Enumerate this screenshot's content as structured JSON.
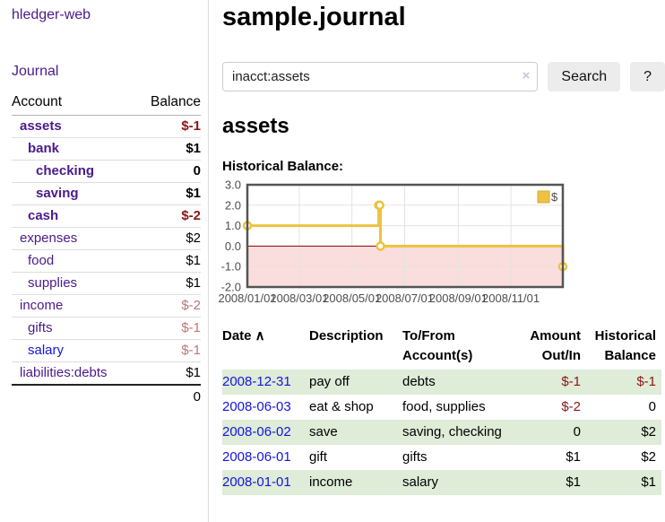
{
  "app": {
    "brand": "hledger-web",
    "nav_journal": "Journal"
  },
  "colors": {
    "link_purple": "#4a1a8c",
    "link_blue": "#1515dd",
    "negative_strong": "#8b1515",
    "negative_faint": "#bb7777",
    "row_stripe_green": "#deecd8"
  },
  "sidebar": {
    "header_account": "Account",
    "header_balance": "Balance",
    "accounts": [
      {
        "name": "assets",
        "indent": 1,
        "balance": "$-1",
        "bold": true
      },
      {
        "name": "bank",
        "indent": 2,
        "balance": "$1",
        "bold": true
      },
      {
        "name": "checking",
        "indent": 3,
        "balance": "0",
        "bold": true
      },
      {
        "name": "saving",
        "indent": 3,
        "balance": "$1",
        "bold": true
      },
      {
        "name": "cash",
        "indent": 2,
        "balance": "$-2",
        "bold": true
      },
      {
        "name": "expenses",
        "indent": 1,
        "balance": "$2",
        "bold": false
      },
      {
        "name": "food",
        "indent": 2,
        "balance": "$1",
        "bold": false
      },
      {
        "name": "supplies",
        "indent": 2,
        "balance": "$1",
        "bold": false
      },
      {
        "name": "income",
        "indent": 1,
        "balance": "$-2",
        "bold": false
      },
      {
        "name": "gifts",
        "indent": 2,
        "balance": "$-1",
        "bold": false
      },
      {
        "name": "salary",
        "indent": 2,
        "balance": "$-1",
        "bold": false,
        "link_color": "blue"
      },
      {
        "name": "liabilities:debts",
        "indent": 1,
        "balance": "$1",
        "bold": false
      }
    ],
    "total": "0"
  },
  "main": {
    "title": "sample.journal",
    "search": {
      "value": "inacct:assets",
      "clear_icon": "×",
      "button_label": "Search",
      "help_label": "?"
    },
    "account_heading": "assets",
    "chart_label": "Historical Balance:"
  },
  "chart_data": {
    "type": "line",
    "step": true,
    "title": "Historical Balance",
    "xlim": [
      "2008-01-01",
      "2008-12-31"
    ],
    "ylim": [
      -2,
      3
    ],
    "x_ticks": [
      "2008/01/01",
      "2008/03/01",
      "2008/05/01",
      "2008/07/01",
      "2008/09/01",
      "2008/11/01"
    ],
    "y_ticks": [
      "3.0",
      "2.0",
      "1.0",
      "0.0",
      "-1.0",
      "-2.0"
    ],
    "grid": true,
    "negative_fill": "#fadddd",
    "zero_line_color": "#8b0000",
    "legend": {
      "label": "$",
      "position": "top-right"
    },
    "series": [
      {
        "name": "$",
        "color": "#EDC240",
        "points": [
          [
            "2008-01-01",
            1
          ],
          [
            "2008-06-01",
            2
          ],
          [
            "2008-06-02",
            2
          ],
          [
            "2008-06-03",
            0
          ],
          [
            "2008-12-31",
            -1
          ]
        ]
      }
    ]
  },
  "register": {
    "headers": [
      {
        "key": "date",
        "label": "Date",
        "sort": "∧",
        "sortable": true,
        "align": "left"
      },
      {
        "key": "description",
        "label": "Description",
        "sortable": false,
        "align": "left"
      },
      {
        "key": "accounts",
        "label": "To/From Account(s)",
        "sortable": false,
        "align": "left"
      },
      {
        "key": "amount",
        "label": "Amount Out/In",
        "sortable": false,
        "align": "right"
      },
      {
        "key": "balance",
        "label": "Historical Balance",
        "sortable": false,
        "align": "right"
      }
    ],
    "rows": [
      {
        "date": "2008-12-31",
        "description": "pay off",
        "accounts": "debts",
        "amount": "$-1",
        "balance": "$-1"
      },
      {
        "date": "2008-06-03",
        "description": "eat & shop",
        "accounts": "food, supplies",
        "amount": "$-2",
        "balance": "0"
      },
      {
        "date": "2008-06-02",
        "description": "save",
        "accounts": "saving, checking",
        "amount": "0",
        "balance": "$2"
      },
      {
        "date": "2008-06-01",
        "description": "gift",
        "accounts": "gifts",
        "amount": "$1",
        "balance": "$2"
      },
      {
        "date": "2008-01-01",
        "description": "income",
        "accounts": "salary",
        "amount": "$1",
        "balance": "$1"
      }
    ]
  }
}
